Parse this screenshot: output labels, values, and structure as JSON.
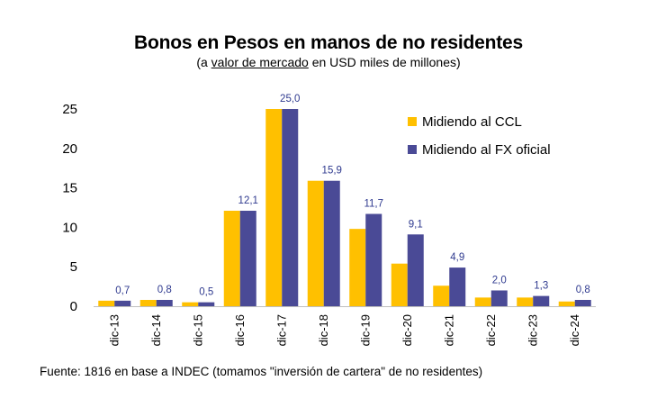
{
  "chart_data": {
    "type": "bar",
    "title": "Bonos en Pesos en manos de no residentes",
    "subtitle_prefix": "(a ",
    "subtitle_underlined": "valor de mercado",
    "subtitle_suffix": " en USD miles de millones)",
    "categories": [
      "dic-13",
      "dic-14",
      "dic-15",
      "dic-16",
      "dic-17",
      "dic-18",
      "dic-19",
      "dic-20",
      "dic-21",
      "dic-22",
      "dic-23",
      "dic-24"
    ],
    "series": [
      {
        "name": "Midiendo al CCL",
        "color": "#FFC000",
        "values": [
          0.7,
          0.8,
          0.5,
          12.1,
          25.0,
          15.9,
          9.8,
          5.4,
          2.6,
          1.1,
          1.1,
          0.6
        ]
      },
      {
        "name": "Midiendo al FX oficial",
        "color": "#4A4A96",
        "values": [
          0.7,
          0.8,
          0.5,
          12.1,
          25.0,
          15.9,
          11.7,
          9.1,
          4.9,
          2.0,
          1.3,
          0.8
        ],
        "labels": [
          "0,7",
          "0,8",
          "0,5",
          "12,1",
          "25,0",
          "15,9",
          "11,7",
          "9,1",
          "4,9",
          "2,0",
          "1,3",
          "0,8"
        ]
      }
    ],
    "yticks": [
      "0",
      "5",
      "10",
      "15",
      "20",
      "25"
    ],
    "ylim": [
      0,
      25
    ],
    "xlabel": "",
    "ylabel": "",
    "grid": false,
    "legend_position": "top-right",
    "data_label_color": "#2F3A8F"
  },
  "source": "Fuente: 1816 en base a INDEC (tomamos \"inversión de cartera\" de no residentes)"
}
